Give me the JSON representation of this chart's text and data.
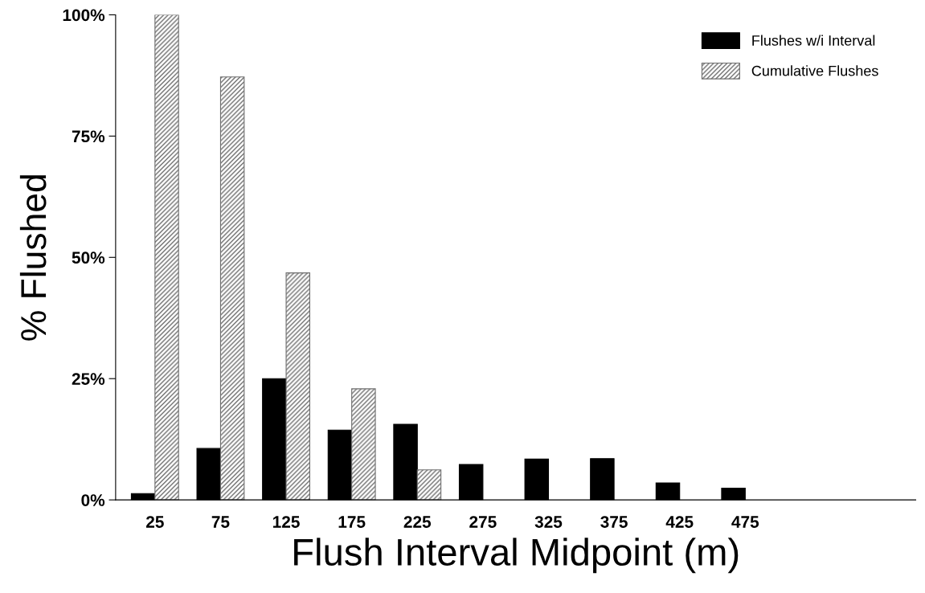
{
  "chart_data": {
    "type": "bar",
    "xlabel": "Flush Interval Midpoint (m)",
    "ylabel": "% Flushed",
    "categories": [
      "25",
      "75",
      "125",
      "175",
      "225",
      "275",
      "325",
      "375",
      "425",
      "475"
    ],
    "series": [
      {
        "name": "Flushes w/i Interval",
        "color": "#000000",
        "values": [
          1.3,
          10.6,
          25,
          14.4,
          15.6,
          7.3,
          8.4,
          8.5,
          3.5,
          2.4
        ]
      },
      {
        "name": "Cumulative Flushes",
        "color": "#6e6e6e",
        "values": [
          100,
          87.2,
          46.8,
          22.9,
          6.2,
          null,
          null,
          null,
          null,
          null
        ]
      }
    ],
    "ylim": [
      0,
      100
    ],
    "yticks": [
      {
        "value": 0,
        "label": "0%"
      },
      {
        "value": 25,
        "label": "25%"
      },
      {
        "value": 50,
        "label": "50%"
      },
      {
        "value": 75,
        "label": "75%"
      },
      {
        "value": 100,
        "label": "100%"
      }
    ],
    "legend": "top right",
    "grid": false
  }
}
